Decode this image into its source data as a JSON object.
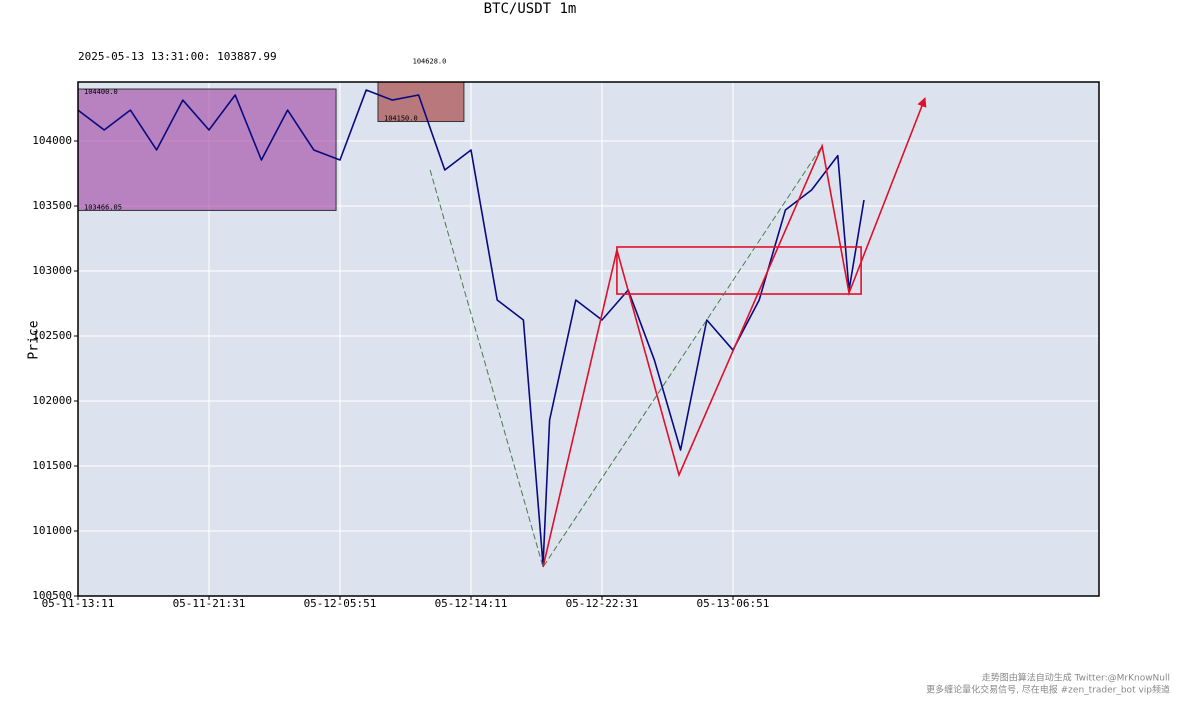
{
  "chart_data": {
    "type": "line",
    "title": "BTC/USDT 1m",
    "subtitle": "2025-05-13 13:31:00: 103887.99",
    "y_label": "Price",
    "x": [
      "05-11-13:11",
      "05-11-14:51",
      "05-11-16:31",
      "05-11-18:11",
      "05-11-19:51",
      "05-11-21:31",
      "05-11-23:11",
      "05-12-00:51",
      "05-12-02:31",
      "05-12-04:11",
      "05-12-05:51",
      "05-12-07:31",
      "05-12-09:11",
      "05-12-10:51",
      "05-12-12:31",
      "05-12-14:11",
      "05-12-15:51",
      "05-12-17:31",
      "05-12-18:46",
      "05-12-19:11",
      "05-12-20:51",
      "05-12-22:31",
      "05-13-00:11",
      "05-13-01:51",
      "05-13-03:31",
      "05-13-05:11",
      "05-13-06:51",
      "05-13-08:31",
      "05-13-10:11",
      "05-13-11:51",
      "05-13-13:31",
      "05-13-14:14",
      "05-13-15:11"
    ],
    "values": [
      104238,
      104085,
      104238,
      103931,
      104315,
      104085,
      104354,
      103854,
      104238,
      103931,
      103854,
      104392,
      104315,
      104354,
      103777,
      103931,
      102777,
      102623,
      100738,
      101854,
      102777,
      102623,
      102854,
      102315,
      101623,
      102623,
      102392,
      102777,
      103469,
      103623,
      103887.99,
      102854,
      103546
    ],
    "color": "#0a0a80",
    "strokes": {
      "x": [
        "05-12-18:46",
        "05-12-23:28",
        "05-13-03:25",
        "05-13-12:31",
        "05-13-14:14",
        "05-13-19:04"
      ],
      "values": [
        100723,
        103162,
        101431,
        103962,
        102831,
        104331
      ],
      "color": "#e0102a"
    },
    "trend": {
      "x": [
        "05-12-11:35",
        "05-12-18:46",
        "05-13-12:31"
      ],
      "values": [
        103777,
        100723,
        103962
      ],
      "color": "#4a7a4a"
    },
    "zones": [
      {
        "x": [
          "05-11-13:11",
          "05-12-05:36"
        ],
        "values": [
          103466.05,
          104400
        ],
        "value_labels": [
          "103466.05",
          "104400.0"
        ],
        "color": "#a040a0"
      },
      {
        "x": [
          "05-12-08:16",
          "05-12-13:44"
        ],
        "values": [
          104150,
          104628
        ],
        "value_labels": [
          "104150.0",
          "104628.0"
        ],
        "color": "#a03030"
      },
      {
        "x": [
          "05-12-23:28",
          "05-13-15:00"
        ],
        "values": [
          102823,
          103185
        ],
        "color": "#e0102a"
      }
    ],
    "xlim": [
      "05-11-13:11",
      "05-14-06:08"
    ],
    "xticks": [
      "05-11-13:11",
      "05-11-21:31",
      "05-12-05:51",
      "05-12-14:11",
      "05-12-22:31",
      "05-13-06:51"
    ],
    "ylim": [
      100500,
      104454
    ],
    "yticks": [
      100500,
      101000,
      101500,
      102000,
      102500,
      103000,
      103500,
      104000
    ],
    "grid": true,
    "footer": [
      "走势图由算法自动生成  Twitter:@MrKnowNull",
      "更多缠论量化交易信号, 尽在电报 #zen_trader_bot vip频道"
    ]
  }
}
